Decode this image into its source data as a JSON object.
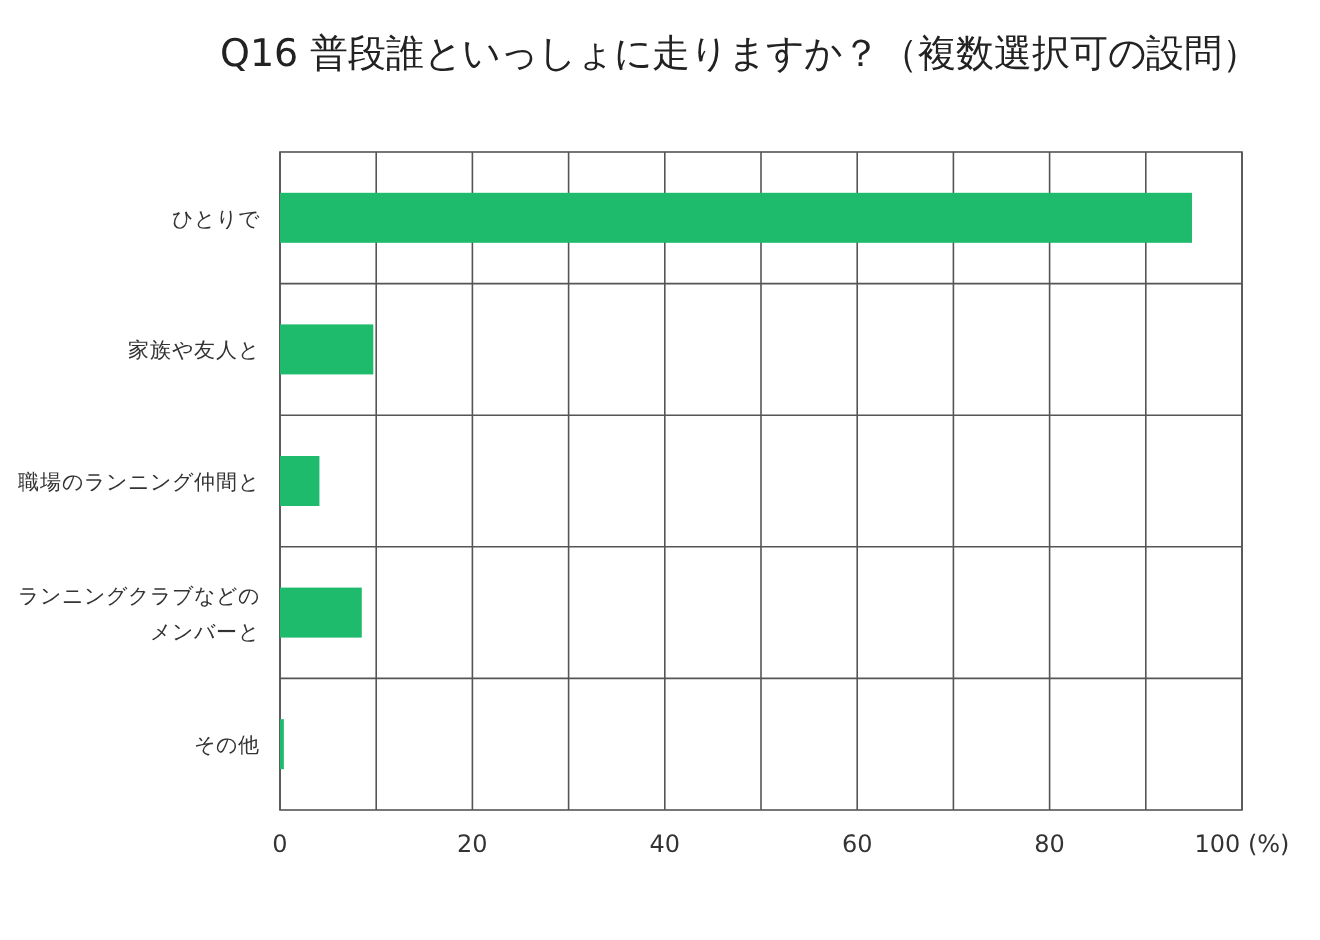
{
  "chart_data": {
    "type": "bar",
    "orientation": "horizontal",
    "title": "Q16 普段誰といっしょに走りますか？（複数選択可の設問）",
    "categories": [
      "ひとりで",
      "家族や友人と",
      "職場のランニング仲間と",
      "ランニングクラブなどのメンバーと",
      "その他"
    ],
    "values": [
      94.8,
      9.7,
      4.1,
      8.5,
      0.4
    ],
    "color": "#1dbb6b",
    "xlim": [
      0,
      100
    ],
    "xticks": [
      0,
      {
        "value": 10,
        "label": null
      },
      20,
      {
        "value": 30,
        "label": null
      },
      40,
      {
        "value": 50,
        "label": null
      },
      60,
      {
        "value": 70,
        "label": null
      },
      80,
      {
        "value": 90,
        "label": null
      },
      {
        "value": 100,
        "label": "100 (%)"
      }
    ],
    "grid": true
  }
}
